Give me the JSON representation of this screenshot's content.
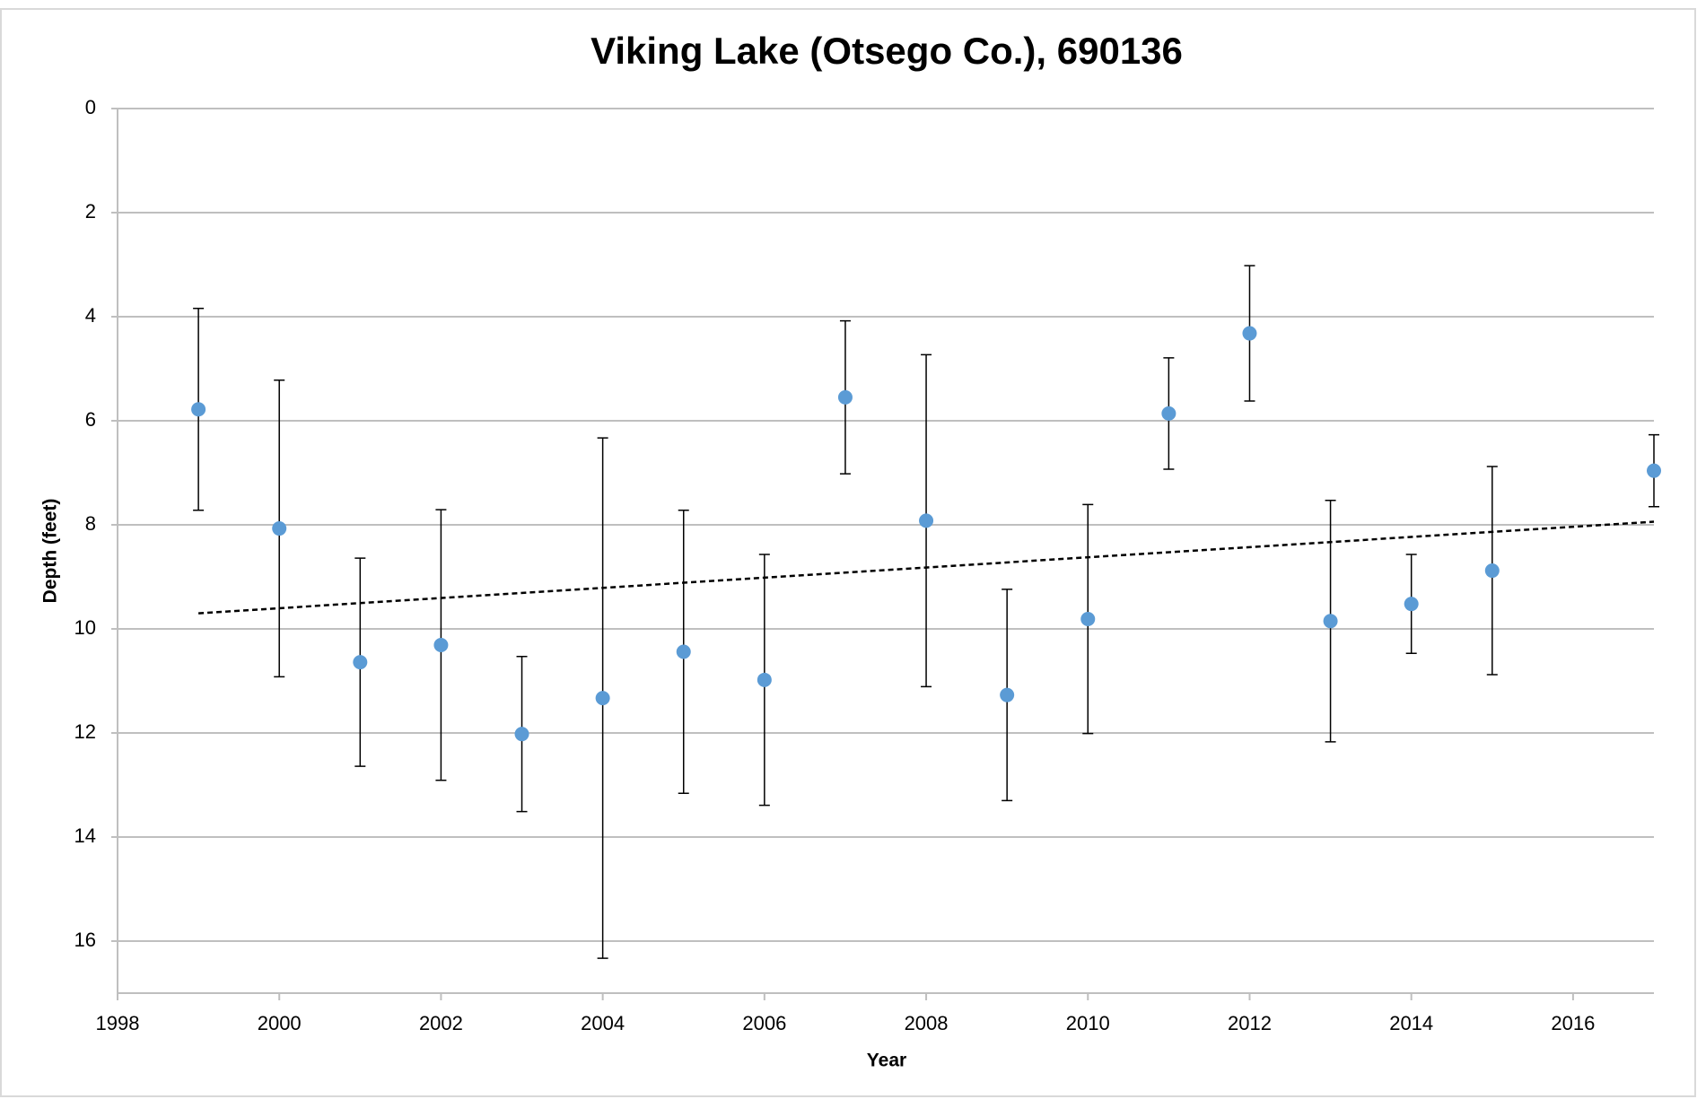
{
  "chart_data": {
    "type": "scatter",
    "title": "Viking Lake (Otsego Co.), 690136",
    "x_label": "Year",
    "y_label": "Depth (feet)",
    "x": [
      1999,
      2000,
      2001,
      2002,
      2003,
      2004,
      2005,
      2006,
      2007,
      2008,
      2009,
      2010,
      2011,
      2012,
      2013,
      2014,
      2015,
      2017
    ],
    "values": [
      5.78,
      8.07,
      10.64,
      10.31,
      12.02,
      11.33,
      10.44,
      10.98,
      5.55,
      7.92,
      11.27,
      9.81,
      5.86,
      4.32,
      9.85,
      9.52,
      8.88,
      6.96
    ],
    "errors": [
      1.94,
      2.85,
      2.0,
      2.6,
      1.49,
      5.0,
      2.72,
      2.41,
      1.47,
      3.19,
      2.03,
      2.2,
      1.07,
      1.3,
      2.32,
      0.95,
      2.0,
      0.69
    ],
    "color": "#5b9bd5",
    "error_color": "#000000",
    "trendline": {
      "x": [
        1999,
        2017
      ],
      "values": [
        9.7,
        7.94
      ],
      "color": "#000000"
    },
    "xlim": [
      1998,
      2017
    ],
    "xticks": [
      1998,
      2000,
      2002,
      2004,
      2006,
      2008,
      2010,
      2012,
      2014,
      2016
    ],
    "ylim": [
      0,
      17
    ],
    "yticks": [
      0,
      2,
      4,
      6,
      8,
      10,
      12,
      14,
      16
    ],
    "y_inverted": true,
    "grid": true
  }
}
